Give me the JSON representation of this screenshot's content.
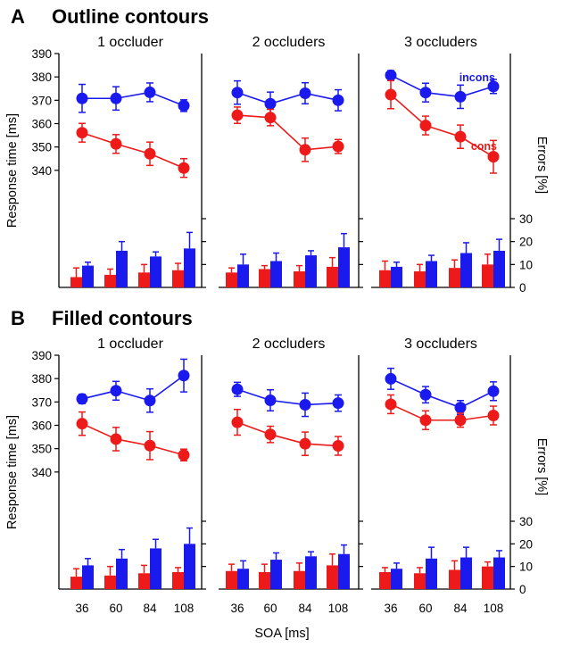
{
  "figure": {
    "xlabel": "SOA [ms]",
    "colors": {
      "incons": "#1a1aee",
      "cons": "#ee1a1a",
      "axis": "#000000"
    }
  },
  "chart_data": [
    {
      "type": "line",
      "panel": "A",
      "section_title": "Outline contours",
      "ylabel": "Response time [ms]",
      "ylabel_right": "Errors [%]",
      "ylim": [
        330,
        390
      ],
      "yticks": [
        340,
        350,
        360,
        370,
        380,
        390
      ],
      "error_ylim": [
        0,
        30
      ],
      "error_yticks": [
        0,
        10,
        20,
        30
      ],
      "categories": [
        36,
        60,
        84,
        108
      ],
      "series_labels": {
        "incons": "incons",
        "cons": "cons"
      },
      "subplots": [
        {
          "title": "1 occluder",
          "series": [
            {
              "key": "incons",
              "values": [
                370.8,
                370.8,
                373.4,
                367.7
              ],
              "errors": [
                6,
                5,
                4,
                2.5
              ]
            },
            {
              "key": "cons",
              "values": [
                356.1,
                351.3,
                347.1,
                341.0
              ],
              "errors": [
                4,
                4,
                5,
                4
              ]
            }
          ],
          "error_bars": {
            "cons": [
              4.5,
              5.5,
              6.5,
              7.5
            ],
            "incons": [
              9.5,
              16.0,
              13.5,
              17.0
            ],
            "cons_err": [
              4,
              2.5,
              3.5,
              3
            ],
            "incons_err": [
              1.5,
              4,
              2,
              7
            ]
          }
        },
        {
          "title": "2 occluders",
          "series": [
            {
              "key": "incons",
              "values": [
                373.3,
                368.5,
                373.0,
                370.0
              ],
              "errors": [
                5,
                5,
                4.5,
                4.5
              ]
            },
            {
              "key": "cons",
              "values": [
                363.6,
                362.6,
                348.8,
                350.2
              ],
              "errors": [
                3.5,
                3.5,
                5,
                3
              ]
            }
          ],
          "error_bars": {
            "cons": [
              6.5,
              8.0,
              7.0,
              9.0
            ],
            "incons": [
              10.0,
              11.5,
              14.0,
              17.5
            ],
            "cons_err": [
              2,
              1.5,
              2.5,
              4
            ],
            "incons_err": [
              4.5,
              3.5,
              2,
              6
            ]
          }
        },
        {
          "title": "3 occluders",
          "series": [
            {
              "key": "incons",
              "values": [
                380.7,
                373.3,
                371.5,
                375.9
              ],
              "errors": [
                2,
                4,
                5,
                3
              ]
            },
            {
              "key": "cons",
              "values": [
                372.4,
                359.2,
                354.4,
                345.8
              ],
              "errors": [
                6,
                4,
                5,
                7
              ]
            }
          ],
          "error_bars": {
            "cons": [
              7.5,
              7.0,
              8.5,
              10.0
            ],
            "incons": [
              9.0,
              11.5,
              15.0,
              16.0
            ],
            "cons_err": [
              4,
              3,
              3.5,
              4.5
            ],
            "incons_err": [
              2,
              2.5,
              4.5,
              5
            ]
          }
        }
      ]
    },
    {
      "type": "line",
      "panel": "B",
      "section_title": "Filled contours",
      "ylabel": "Response time [ms]",
      "ylabel_right": "Errors [%]",
      "ylim": [
        330,
        390
      ],
      "yticks": [
        340,
        350,
        360,
        370,
        380,
        390
      ],
      "error_ylim": [
        0,
        30
      ],
      "error_yticks": [
        0,
        10,
        20,
        30
      ],
      "categories": [
        36,
        60,
        84,
        108
      ],
      "subplots": [
        {
          "title": "1 occluder",
          "series": [
            {
              "key": "incons",
              "values": [
                371.3,
                374.8,
                370.6,
                381.3
              ],
              "errors": [
                2,
                4,
                5,
                7
              ]
            },
            {
              "key": "cons",
              "values": [
                360.7,
                354.1,
                351.3,
                347.3
              ],
              "errors": [
                5,
                5,
                6,
                2.5
              ]
            }
          ],
          "error_bars": {
            "cons": [
              5.5,
              6.0,
              7.0,
              7.5
            ],
            "incons": [
              10.5,
              13.5,
              18.0,
              20.0
            ],
            "cons_err": [
              3.5,
              4,
              3.5,
              2
            ],
            "incons_err": [
              3,
              4,
              4,
              7
            ]
          }
        },
        {
          "title": "2 occluders",
          "series": [
            {
              "key": "incons",
              "values": [
                375.4,
                370.7,
                368.8,
                369.5
              ],
              "errors": [
                3,
                4.5,
                5,
                3.5
              ]
            },
            {
              "key": "cons",
              "values": [
                361.3,
                356.1,
                352.1,
                351.2
              ],
              "errors": [
                5.5,
                3.5,
                5,
                4
              ]
            }
          ],
          "error_bars": {
            "cons": [
              8.0,
              7.5,
              8.0,
              10.5
            ],
            "incons": [
              9.0,
              13.0,
              14.5,
              15.5
            ],
            "cons_err": [
              3,
              3.5,
              3.5,
              5
            ],
            "incons_err": [
              3.5,
              3,
              2,
              4
            ]
          }
        },
        {
          "title": "3 occluders",
          "series": [
            {
              "key": "incons",
              "values": [
                379.9,
                373.1,
                367.6,
                374.6
              ],
              "errors": [
                4.5,
                3.5,
                3,
                4
              ]
            },
            {
              "key": "cons",
              "values": [
                369.0,
                362.2,
                362.2,
                364.2
              ],
              "errors": [
                4,
                4,
                3,
                4
              ]
            }
          ],
          "error_bars": {
            "cons": [
              7.5,
              7.0,
              8.5,
              10.0
            ],
            "incons": [
              9.0,
              13.5,
              14.0,
              14.0
            ],
            "cons_err": [
              2,
              2.5,
              4,
              2
            ],
            "incons_err": [
              2.5,
              5,
              4.5,
              3
            ]
          }
        }
      ]
    }
  ]
}
